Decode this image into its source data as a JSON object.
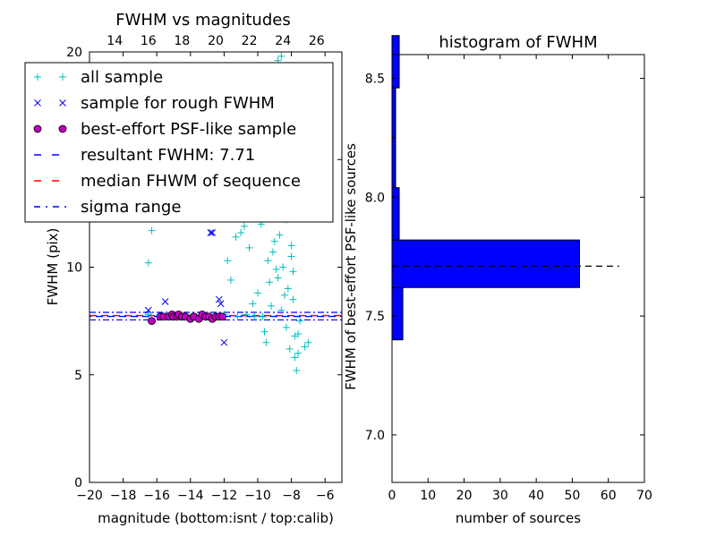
{
  "chart_data": [
    {
      "type": "scatter",
      "title": "FWHM vs magnitudes",
      "xlabel": "magnitude (bottom:isnt / top:calib)",
      "ylabel": "FWHM (pix)",
      "xlim": [
        -20,
        -5
      ],
      "ylim": [
        0,
        20
      ],
      "xticks": [
        "−20",
        "−18",
        "−16",
        "−14",
        "−12",
        "−10",
        "−8",
        "−6"
      ],
      "yticks": [
        "0",
        "5",
        "10",
        "15",
        "20"
      ],
      "top_xlim": [
        12.5,
        27.5
      ],
      "top_xticks": [
        "14",
        "16",
        "18",
        "20",
        "22",
        "24",
        "26"
      ],
      "legend": {
        "placement": "upper-left",
        "entries": [
          {
            "label": "all sample",
            "marker": "+",
            "color": "#00bfbf"
          },
          {
            "label": "sample for rough FWHM",
            "marker": "x",
            "color": "#0000ff"
          },
          {
            "label": "best-effort PSF-like sample",
            "marker": "o",
            "color": "#bf00bf"
          },
          {
            "label": "resultant FWHM: 7.71",
            "marker": "dashed",
            "color": "#0000ff"
          },
          {
            "label": "median FHWM of sequence",
            "marker": "dashed",
            "color": "#ff0000"
          },
          {
            "label": "sigma range",
            "marker": "dashdot",
            "color": "#0000ff"
          }
        ]
      },
      "lines": {
        "resultant_fwhm": 7.71,
        "median_fwhm": 7.75,
        "sigma_low": 7.55,
        "sigma_high": 7.9
      },
      "series": [
        {
          "name": "all sample",
          "points": [
            [
              -16.3,
              11.7
            ],
            [
              -16.5,
              10.2
            ],
            [
              -16.5,
              7.8
            ],
            [
              -15.2,
              7.7
            ],
            [
              -14.0,
              7.7
            ],
            [
              -13.0,
              7.7
            ],
            [
              -12.0,
              7.8
            ],
            [
              -11.8,
              10.3
            ],
            [
              -11.6,
              9.4
            ],
            [
              -11.3,
              11.4
            ],
            [
              -11.0,
              11.6
            ],
            [
              -10.8,
              11.9
            ],
            [
              -10.5,
              10.9
            ],
            [
              -10.3,
              8.3
            ],
            [
              -10.0,
              8.8
            ],
            [
              -9.8,
              12.0
            ],
            [
              -9.6,
              7.0
            ],
            [
              -9.5,
              6.5
            ],
            [
              -9.3,
              9.3
            ],
            [
              -9.1,
              10.7
            ],
            [
              -9.0,
              11.2
            ],
            [
              -8.9,
              15.0
            ],
            [
              -8.8,
              9.5
            ],
            [
              -8.7,
              12.8
            ],
            [
              -8.6,
              8.0
            ],
            [
              -8.5,
              10.0
            ],
            [
              -8.4,
              16.8
            ],
            [
              -8.3,
              7.2
            ],
            [
              -8.2,
              9.0
            ],
            [
              -8.1,
              13.5
            ],
            [
              -8.0,
              11.0
            ],
            [
              -7.9,
              8.5
            ],
            [
              -7.8,
              6.8
            ],
            [
              -7.7,
              5.2
            ],
            [
              -7.6,
              6.0
            ],
            [
              -7.5,
              7.5
            ],
            [
              -7.2,
              6.3
            ],
            [
              -7.0,
              6.5
            ],
            [
              -8.6,
              19.8
            ],
            [
              -8.8,
              19.6
            ],
            [
              -8.5,
              18.0
            ],
            [
              -8.2,
              14.0
            ],
            [
              -8.0,
              10.5
            ],
            [
              -7.9,
              9.8
            ],
            [
              -8.3,
              12.2
            ],
            [
              -8.7,
              11.5
            ],
            [
              -9.2,
              8.2
            ],
            [
              -9.7,
              7.7
            ],
            [
              -10.2,
              7.7
            ],
            [
              -10.7,
              7.8
            ],
            [
              -11.2,
              7.7
            ],
            [
              -12.5,
              7.7
            ],
            [
              -13.5,
              7.7
            ],
            [
              -14.5,
              7.7
            ],
            [
              -8.1,
              6.2
            ],
            [
              -7.8,
              5.8
            ],
            [
              -7.6,
              6.9
            ],
            [
              -8.4,
              8.7
            ],
            [
              -8.9,
              9.9
            ],
            [
              -9.4,
              10.3
            ]
          ]
        },
        {
          "name": "sample for rough FWHM",
          "points": [
            [
              -16.5,
              8.0
            ],
            [
              -15.5,
              8.4
            ],
            [
              -12.8,
              11.6
            ],
            [
              -12.7,
              11.6
            ],
            [
              -12.3,
              8.5
            ],
            [
              -12.2,
              8.3
            ],
            [
              -12.0,
              6.5
            ],
            [
              -14.8,
              7.7
            ],
            [
              -13.5,
              7.7
            ]
          ]
        },
        {
          "name": "best-effort PSF-like sample",
          "points": [
            [
              -16.3,
              7.5
            ],
            [
              -15.8,
              7.7
            ],
            [
              -15.6,
              7.7
            ],
            [
              -15.3,
              7.7
            ],
            [
              -15.1,
              7.8
            ],
            [
              -15.0,
              7.7
            ],
            [
              -14.8,
              7.7
            ],
            [
              -14.7,
              7.8
            ],
            [
              -14.5,
              7.7
            ],
            [
              -14.3,
              7.7
            ],
            [
              -14.0,
              7.6
            ],
            [
              -13.8,
              7.7
            ],
            [
              -13.5,
              7.6
            ],
            [
              -13.3,
              7.8
            ],
            [
              -13.1,
              7.7
            ],
            [
              -12.9,
              7.7
            ],
            [
              -12.7,
              7.6
            ],
            [
              -12.5,
              7.7
            ],
            [
              -12.3,
              7.7
            ],
            [
              -12.1,
              7.7
            ]
          ]
        }
      ]
    },
    {
      "type": "bar",
      "orientation": "horizontal",
      "title": "histogram of FWHM",
      "xlabel": "number of sources",
      "ylabel": "FWHM of best-effort PSF-like sources",
      "xlim": [
        0,
        70
      ],
      "ylim": [
        6.8,
        8.6
      ],
      "xticks": [
        "0",
        "10",
        "20",
        "30",
        "40",
        "50",
        "60",
        "70"
      ],
      "yticks": [
        "7.0",
        "7.5",
        "8.0",
        "8.5"
      ],
      "color": "#0000ff",
      "bins": [
        {
          "low": 7.4,
          "high": 7.62,
          "count": 3
        },
        {
          "low": 7.62,
          "high": 7.82,
          "count": 52
        },
        {
          "low": 7.82,
          "high": 8.04,
          "count": 2
        },
        {
          "low": 8.04,
          "high": 8.25,
          "count": 1
        },
        {
          "low": 8.25,
          "high": 8.46,
          "count": 1
        },
        {
          "low": 8.46,
          "high": 8.68,
          "count": 2
        }
      ],
      "reference_line": {
        "value": 7.71,
        "x_range": [
          0,
          63
        ],
        "style": "dashed",
        "color": "#000000"
      }
    }
  ]
}
